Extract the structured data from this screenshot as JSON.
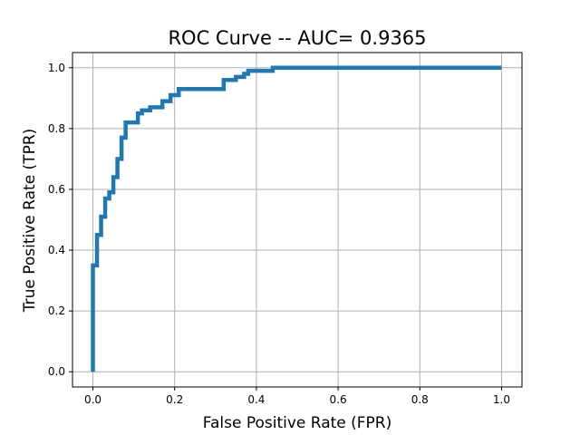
{
  "chart_data": {
    "type": "line",
    "title": "ROC Curve -- AUC= 0.9365",
    "xlabel": "False Positive Rate (FPR)",
    "ylabel": "True Positive Rate (TPR)",
    "xlim": [
      -0.05,
      1.05
    ],
    "ylim": [
      -0.05,
      1.05
    ],
    "grid": true,
    "xticks": [
      "0.0",
      "0.2",
      "0.4",
      "0.6",
      "0.8",
      "1.0"
    ],
    "yticks": [
      "0.0",
      "0.2",
      "0.4",
      "0.6",
      "0.8",
      "1.0"
    ],
    "series_color": "#1f77b4",
    "series": [
      {
        "x": [
          0.0,
          0.0,
          0.01,
          0.01,
          0.02,
          0.02,
          0.03,
          0.03,
          0.04,
          0.04,
          0.05,
          0.05,
          0.06,
          0.06,
          0.07,
          0.07,
          0.08,
          0.08,
          0.11,
          0.11,
          0.12,
          0.12,
          0.14,
          0.14,
          0.17,
          0.17,
          0.19,
          0.19,
          0.21,
          0.21,
          0.23,
          0.23,
          0.32,
          0.32,
          0.35,
          0.35,
          0.37,
          0.37,
          0.38,
          0.38,
          0.44,
          0.44,
          1.0
        ],
        "y": [
          0.0,
          0.35,
          0.35,
          0.45,
          0.45,
          0.51,
          0.51,
          0.57,
          0.57,
          0.59,
          0.59,
          0.64,
          0.64,
          0.7,
          0.7,
          0.77,
          0.77,
          0.82,
          0.82,
          0.85,
          0.85,
          0.86,
          0.86,
          0.87,
          0.87,
          0.89,
          0.89,
          0.91,
          0.91,
          0.93,
          0.93,
          0.93,
          0.93,
          0.96,
          0.96,
          0.97,
          0.97,
          0.98,
          0.98,
          0.99,
          0.99,
          1.0,
          1.0
        ]
      }
    ]
  }
}
